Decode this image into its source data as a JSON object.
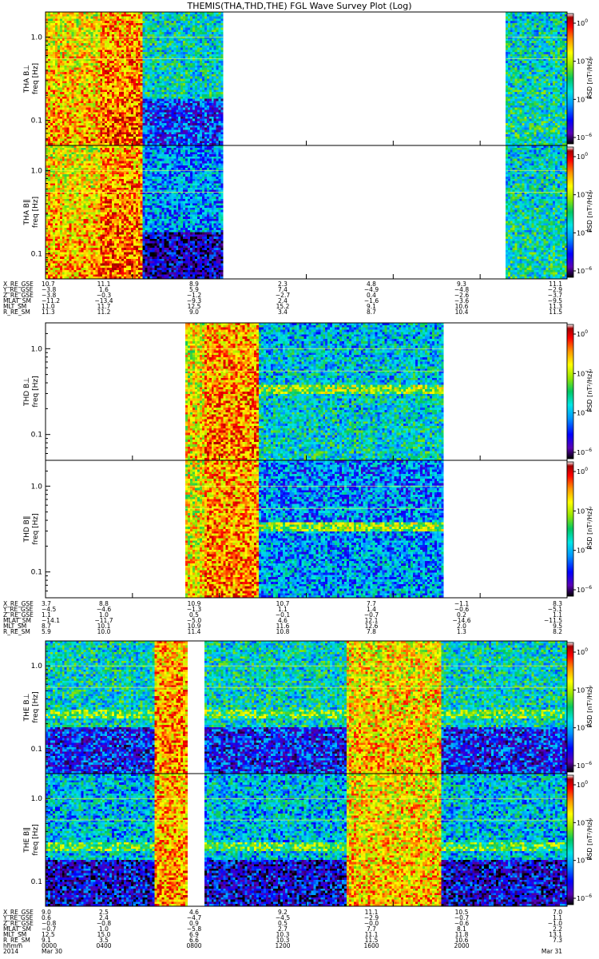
{
  "chart_data": {
    "type": "heatmap",
    "title": "THEMIS(THA,THD,THE) FGL Wave Survey Plot (Log)",
    "freq_axis": {
      "label": "freq [Hz]",
      "scale": "log",
      "range": [
        0.05,
        2.0
      ],
      "tick_values": [
        1.0,
        0.1
      ],
      "tick_labels": [
        "1.0",
        "0.1"
      ]
    },
    "time_axis": {
      "range_hours": [
        0,
        24
      ],
      "tick_labels": [
        "0000",
        "0400",
        "0800",
        "1200",
        "1600",
        "2000",
        ""
      ],
      "row_label": "hhmm",
      "start_label": "2014",
      "start_date": "Mar 30",
      "end_date": "Mar 31"
    },
    "colorbar": {
      "label": "PSD [nT²/Hz]",
      "scale": "log",
      "tick_exponents": [
        0,
        -2,
        -4,
        -6
      ],
      "colormap": [
        "#000000",
        "#5a00b4",
        "#0000ff",
        "#0096ff",
        "#00e6e6",
        "#00c864",
        "#96e600",
        "#ffff00",
        "#ff9600",
        "#ff0000",
        "#a00000",
        "#ffffff"
      ]
    },
    "probes": [
      {
        "name": "THA",
        "panels": [
          {
            "label": "THA B⊥",
            "component": "perp"
          },
          {
            "label": "THA B∥",
            "component": "par"
          }
        ],
        "coverage_hours": [
          [
            0,
            8.2
          ],
          [
            21.2,
            24
          ]
        ],
        "ephemeris": [
          {
            "name": "X_RE_GSE",
            "values": [
              "10.7",
              "11.1",
              "8.9",
              "2.3",
              "4.8",
              "9.3",
              "11.1"
            ]
          },
          {
            "name": "Y_RE_GSE",
            "values": [
              "−3.8",
              "1.6",
              "5.9",
              "7.4",
              "−4.9",
              "−4.8",
              "−2.9"
            ]
          },
          {
            "name": "Z_RE_GSE",
            "values": [
              "−3.8",
              "−0.3",
              "−1.2",
              "−2.7",
              "0.4",
              "−2.6",
              "−3.7"
            ]
          },
          {
            "name": "MLAT_SM",
            "values": [
              "−11.2",
              "−13.4",
              "−9.3",
              "2.4",
              "−1.6",
              "−3.6",
              "−9.5"
            ]
          },
          {
            "name": "MLT_SM",
            "values": [
              "11.0",
              "11.7",
              "12.5",
              "15.2",
              "9.1",
              "10.6",
              "11.3"
            ]
          },
          {
            "name": "R_RE_SM",
            "values": [
              "11.3",
              "11.2",
              "9.0",
              "3.4",
              "8.7",
              "10.4",
              "11.5"
            ]
          }
        ]
      },
      {
        "name": "THD",
        "panels": [
          {
            "label": "THD B⊥",
            "component": "perp"
          },
          {
            "label": "THD B∥",
            "component": "par"
          }
        ],
        "coverage_hours": [
          [
            6.4,
            18.3
          ]
        ],
        "ephemeris": [
          {
            "name": "X_RE_GSE",
            "values": [
              "3.7",
              "8.8",
              "10.9",
              "10.7",
              "7.7",
              "−1.1",
              "8.3"
            ]
          },
          {
            "name": "Y_RE_GSE",
            "values": [
              "−4.5",
              "−4.6",
              "−1.3",
              "1.1",
              "1.4",
              "−0.6",
              "−5.1"
            ]
          },
          {
            "name": "Z_RE_GSE",
            "values": [
              "1.1",
              "1.0",
              "0.5",
              "−0.1",
              "−0.7",
              "0.2",
              "1.1"
            ]
          },
          {
            "name": "MLAT_SM",
            "values": [
              "−14.1",
              "−11.7",
              "−5.0",
              "4.6",
              "12.1",
              "−14.6",
              "−11.5"
            ]
          },
          {
            "name": "MLT_SM",
            "values": [
              "8.7",
              "10.1",
              "10.9",
              "11.6",
              "12.6",
              "2.0",
              "9.5"
            ]
          },
          {
            "name": "R_RE_SM",
            "values": [
              "5.9",
              "10.0",
              "11.4",
              "10.8",
              "7.8",
              "1.3",
              "8.2"
            ]
          }
        ]
      },
      {
        "name": "THE",
        "panels": [
          {
            "label": "THE B⊥",
            "component": "perp"
          },
          {
            "label": "THE B∥",
            "component": "par"
          }
        ],
        "coverage_hours": [
          [
            0,
            6.6
          ],
          [
            7.3,
            24
          ]
        ],
        "ephemeris": [
          {
            "name": "X_RE_GSE",
            "values": [
              "9.0",
              "2.5",
              "4.6",
              "9.2",
              "11.1",
              "10.5",
              "7.0"
            ]
          },
          {
            "name": "Y_RE_GSE",
            "values": [
              "0.6",
              "2.4",
              "−4.7",
              "−4.5",
              "−2.9",
              "−0.7",
              "1.1"
            ]
          },
          {
            "name": "Z_RE_GSE",
            "values": [
              "−0.8",
              "−0.8",
              "0.9",
              "0.5",
              "−0.0",
              "−0.6",
              "−1.0"
            ]
          },
          {
            "name": "MLAT_SM",
            "values": [
              "−0.7",
              "1.0",
              "−5.8",
              "2.7",
              "7.7",
              "8.1",
              "2.2"
            ]
          },
          {
            "name": "MLT_SM",
            "values": [
              "12.5",
              "15.0",
              "6.9",
              "10.3",
              "11.1",
              "11.8",
              "13.1"
            ]
          },
          {
            "name": "R_RE_SM",
            "values": [
              "9.1",
              "3.5",
              "6.6",
              "10.3",
              "11.5",
              "10.6",
              "7.3"
            ]
          }
        ]
      }
    ]
  }
}
